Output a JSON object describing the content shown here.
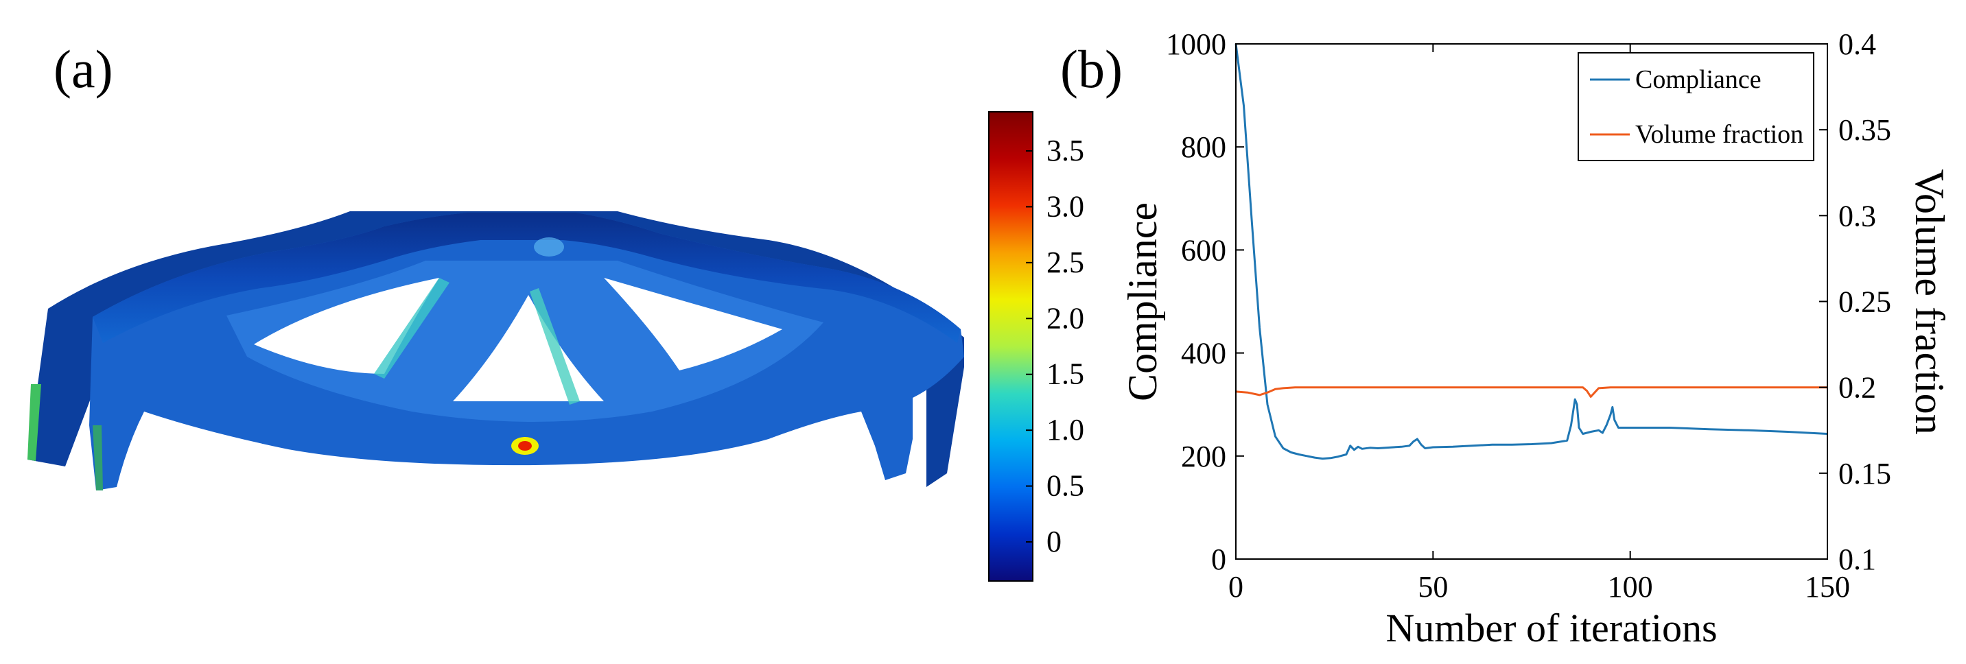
{
  "panel_a": {
    "label": "(a)",
    "colorbar": {
      "ticks": [
        "3.5",
        "3.0",
        "2.5",
        "2.0",
        "1.5",
        "1.0",
        "0.5",
        "0"
      ],
      "range": [
        -0.35,
        3.85
      ],
      "colors": [
        "#0a0a7a",
        "#0030c8",
        "#0070f0",
        "#00b0f0",
        "#30d8c0",
        "#b0f040",
        "#f0f000",
        "#f8a000",
        "#f03000",
        "#b80000",
        "#800000"
      ]
    }
  },
  "panel_b": {
    "label": "(b)"
  },
  "chart_data": {
    "type": "line",
    "title": "",
    "xlabel": "Number of iterations",
    "ylabel": "Compliance",
    "y2label": "Volume fraction",
    "xlim": [
      0,
      150
    ],
    "ylim": [
      0,
      1000
    ],
    "y2lim": [
      0.1,
      0.4
    ],
    "xticks": [
      "0",
      "50",
      "100",
      "150"
    ],
    "yticks": [
      "0",
      "200",
      "400",
      "600",
      "800",
      "1000"
    ],
    "y2ticks": [
      "0.1",
      "0.15",
      "0.2",
      "0.25",
      "0.3",
      "0.35",
      "0.4"
    ],
    "grid": false,
    "legend_position": "top-right",
    "series": [
      {
        "name": "Compliance",
        "axis": "left",
        "color": "#1f77b4",
        "x": [
          0,
          2,
          4,
          6,
          8,
          10,
          12,
          14,
          16,
          18,
          20,
          22,
          24,
          26,
          28,
          29,
          30,
          31,
          32,
          34,
          36,
          38,
          40,
          42,
          44,
          45,
          46,
          47,
          48,
          50,
          55,
          60,
          65,
          70,
          75,
          80,
          84,
          85,
          86,
          86.5,
          87,
          88,
          90,
          92,
          93,
          94,
          95,
          95.5,
          96,
          97,
          100,
          110,
          120,
          130,
          140,
          150
        ],
        "y": [
          1000,
          880,
          660,
          450,
          300,
          238,
          215,
          207,
          203,
          200,
          197,
          195,
          196,
          199,
          203,
          220,
          212,
          218,
          214,
          216,
          215,
          216,
          217,
          218,
          220,
          228,
          233,
          222,
          215,
          217,
          218,
          220,
          222,
          222,
          223,
          225,
          230,
          260,
          310,
          300,
          255,
          243,
          247,
          250,
          245,
          260,
          280,
          295,
          270,
          255,
          255,
          255,
          252,
          250,
          247,
          243
        ]
      },
      {
        "name": "Volume fraction",
        "axis": "right",
        "color": "#ef5b1c",
        "x": [
          0,
          3,
          6,
          8,
          10,
          12,
          15,
          20,
          30,
          40,
          50,
          60,
          70,
          80,
          88,
          89,
          90,
          91,
          92,
          95,
          100,
          110,
          120,
          130,
          140,
          150
        ],
        "y": [
          0.1975,
          0.197,
          0.1955,
          0.197,
          0.199,
          0.1995,
          0.2,
          0.2,
          0.2,
          0.2,
          0.2,
          0.2,
          0.2,
          0.2,
          0.2,
          0.198,
          0.1945,
          0.197,
          0.1995,
          0.2,
          0.2,
          0.2,
          0.2,
          0.2,
          0.2,
          0.2
        ]
      }
    ]
  }
}
